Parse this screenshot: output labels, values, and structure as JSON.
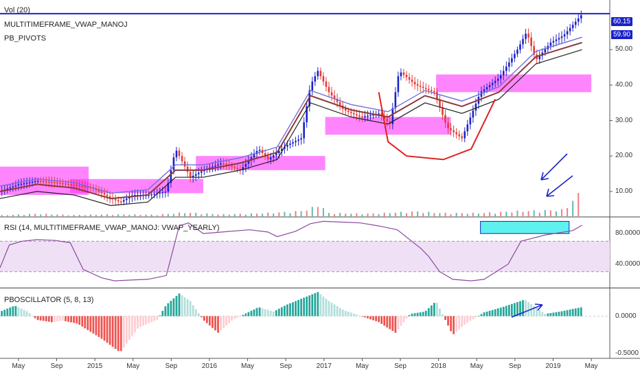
{
  "chart_data": [
    {
      "type": "candlestick",
      "indicators": [
        "Vol (20)",
        "MULTITIMEFRAME_VWAP_MANOJ",
        "PB_PIVOTS"
      ],
      "xaxis": {
        "ticks": [
          "May",
          "Sep",
          "2015",
          "May",
          "Sep",
          "2016",
          "May",
          "Sep",
          "2017",
          "May",
          "Sep",
          "2018",
          "May",
          "Sep",
          "2019",
          "May"
        ]
      },
      "yaxis": {
        "ticks": [
          "10.00",
          "20.00",
          "30.00",
          "40.00",
          "50.00"
        ],
        "range": [
          3,
          64
        ]
      },
      "price_labels": {
        "last": "60.15",
        "secondary": "59.90"
      },
      "horizontal_line": 60.15,
      "price_path": [
        [
          0,
          10
        ],
        [
          10,
          12
        ],
        [
          20,
          13
        ],
        [
          30,
          12.5
        ],
        [
          38,
          12
        ],
        [
          50,
          11
        ],
        [
          60,
          8
        ],
        [
          65,
          7
        ],
        [
          72,
          9
        ],
        [
          80,
          9
        ],
        [
          90,
          10
        ],
        [
          95,
          22
        ],
        [
          100,
          17
        ],
        [
          103,
          14
        ],
        [
          110,
          16
        ],
        [
          120,
          18
        ],
        [
          130,
          16
        ],
        [
          140,
          22
        ],
        [
          145,
          19
        ],
        [
          155,
          23
        ],
        [
          163,
          25
        ],
        [
          168,
          40
        ],
        [
          172,
          44
        ],
        [
          178,
          38
        ],
        [
          186,
          33
        ],
        [
          195,
          31
        ],
        [
          205,
          32
        ],
        [
          211,
          29
        ],
        [
          216,
          44
        ],
        [
          225,
          40
        ],
        [
          235,
          38
        ],
        [
          242,
          28
        ],
        [
          250,
          25
        ],
        [
          260,
          38
        ],
        [
          270,
          42
        ],
        [
          280,
          50
        ],
        [
          285,
          55
        ],
        [
          290,
          47
        ],
        [
          298,
          52
        ],
        [
          305,
          54
        ],
        [
          315,
          60
        ]
      ],
      "volume_path": [
        [
          0,
          0.3
        ],
        [
          20,
          0.8
        ],
        [
          40,
          0.4
        ],
        [
          60,
          0.6
        ],
        [
          85,
          0.5
        ],
        [
          100,
          1.2
        ],
        [
          120,
          0.6
        ],
        [
          140,
          0.9
        ],
        [
          160,
          1.5
        ],
        [
          168,
          2.2
        ],
        [
          172,
          4.0
        ],
        [
          178,
          1.0
        ],
        [
          200,
          0.8
        ],
        [
          225,
          1.5
        ],
        [
          240,
          1.0
        ],
        [
          260,
          1.0
        ],
        [
          280,
          1.6
        ],
        [
          305,
          2.0
        ],
        [
          315,
          8.0
        ]
      ],
      "vwap_path": [
        [
          0,
          10
        ],
        [
          20,
          12
        ],
        [
          40,
          11
        ],
        [
          60,
          8
        ],
        [
          80,
          9
        ],
        [
          95,
          16
        ],
        [
          110,
          16
        ],
        [
          130,
          18
        ],
        [
          150,
          21
        ],
        [
          168,
          37
        ],
        [
          190,
          33
        ],
        [
          210,
          31
        ],
        [
          230,
          37
        ],
        [
          250,
          34
        ],
        [
          270,
          38
        ],
        [
          290,
          48
        ],
        [
          315,
          52
        ]
      ],
      "cup_path": [
        [
          205,
          38
        ],
        [
          210,
          24
        ],
        [
          220,
          20
        ],
        [
          240,
          19
        ],
        [
          255,
          22
        ],
        [
          268,
          36
        ]
      ],
      "pivot_zones": [
        {
          "x0": 0,
          "x1": 48,
          "y0": 9,
          "y1": 17
        },
        {
          "x0": 38,
          "x1": 110,
          "y0": 9.5,
          "y1": 13.5
        },
        {
          "x0": 106,
          "x1": 176,
          "y0": 16,
          "y1": 20
        },
        {
          "x0": 176,
          "x1": 244,
          "y0": 26,
          "y1": 31
        },
        {
          "x0": 236,
          "x1": 320,
          "y0": 38,
          "y1": 43
        }
      ],
      "arrows": [
        "from-upper-right-to-volume-spike",
        "from-right-to-volume-spike"
      ]
    },
    {
      "type": "line",
      "indicator": "RSI (14, MULTITIMEFRAME_VWAP_MANOJ: VWAP_YEARLY)",
      "yaxis": {
        "ticks": [
          "80.0000",
          "40.0000"
        ],
        "range": [
          10,
          100
        ]
      },
      "bands": [
        30,
        70
      ],
      "path": [
        [
          0,
          35
        ],
        [
          5,
          65
        ],
        [
          12,
          70
        ],
        [
          20,
          72
        ],
        [
          30,
          71
        ],
        [
          38,
          68
        ],
        [
          45,
          33
        ],
        [
          55,
          22
        ],
        [
          62,
          18
        ],
        [
          70,
          19
        ],
        [
          80,
          20
        ],
        [
          90,
          25
        ],
        [
          97,
          90
        ],
        [
          102,
          94
        ],
        [
          110,
          80
        ],
        [
          120,
          82
        ],
        [
          135,
          85
        ],
        [
          145,
          82
        ],
        [
          150,
          76
        ],
        [
          160,
          83
        ],
        [
          168,
          93
        ],
        [
          175,
          96
        ],
        [
          195,
          94
        ],
        [
          205,
          90
        ],
        [
          215,
          85
        ],
        [
          228,
          60
        ],
        [
          232,
          50
        ],
        [
          238,
          30
        ],
        [
          245,
          20
        ],
        [
          255,
          18
        ],
        [
          262,
          20
        ],
        [
          275,
          40
        ],
        [
          282,
          70
        ],
        [
          295,
          78
        ],
        [
          310,
          84
        ],
        [
          315,
          91
        ]
      ]
    },
    {
      "type": "bar",
      "indicator": "PBOSCILLATOR (5, 8, 13)",
      "yaxis": {
        "ticks": [
          "0.0000",
          "-0.5000"
        ],
        "range": [
          -0.56,
          0.36
        ]
      },
      "path": [
        [
          0,
          0.06
        ],
        [
          8,
          0.14
        ],
        [
          15,
          0.06
        ],
        [
          20,
          -0.05
        ],
        [
          28,
          -0.08
        ],
        [
          34,
          -0.06
        ],
        [
          42,
          -0.1
        ],
        [
          55,
          -0.3
        ],
        [
          65,
          -0.48
        ],
        [
          75,
          -0.15
        ],
        [
          85,
          -0.05
        ],
        [
          90,
          0.15
        ],
        [
          97,
          0.3
        ],
        [
          103,
          0.2
        ],
        [
          110,
          -0.05
        ],
        [
          118,
          -0.22
        ],
        [
          126,
          -0.05
        ],
        [
          140,
          0.12
        ],
        [
          148,
          0.06
        ],
        [
          155,
          0.15
        ],
        [
          165,
          0.25
        ],
        [
          172,
          0.32
        ],
        [
          178,
          0.2
        ],
        [
          186,
          0.08
        ],
        [
          205,
          -0.08
        ],
        [
          214,
          -0.22
        ],
        [
          222,
          0.03
        ],
        [
          230,
          0.06
        ],
        [
          236,
          0.2
        ],
        [
          245,
          -0.25
        ],
        [
          252,
          -0.1
        ],
        [
          262,
          0.05
        ],
        [
          272,
          0.12
        ],
        [
          284,
          0.22
        ],
        [
          295,
          0.03
        ],
        [
          303,
          0.06
        ],
        [
          315,
          0.12
        ]
      ]
    }
  ]
}
